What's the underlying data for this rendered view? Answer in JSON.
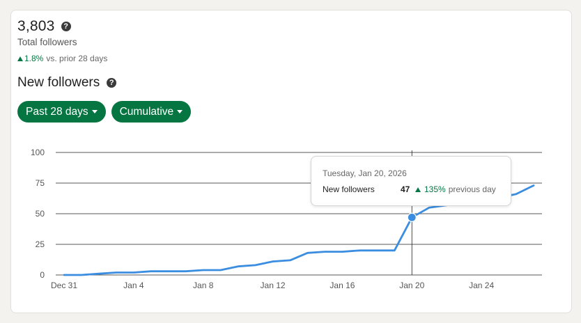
{
  "summary": {
    "total_value": "3,803",
    "total_label": "Total followers",
    "change_pct": "1.8%",
    "change_text": "vs. prior 28 days"
  },
  "section": {
    "title": "New followers"
  },
  "filters": {
    "range_label": "Past 28 days",
    "mode_label": "Cumulative"
  },
  "tooltip": {
    "date": "Tuesday, Jan 20, 2026",
    "label": "New followers",
    "value": "47",
    "change_pct": "135%",
    "change_text": "previous day"
  },
  "colors": {
    "accent": "#057642",
    "line": "#3b8de0",
    "grid": "#1f1f1f"
  },
  "chart_data": {
    "type": "line",
    "title": "",
    "xlabel": "",
    "ylabel": "",
    "ylim": [
      0,
      100
    ],
    "yticks": [
      0,
      25,
      50,
      75,
      100
    ],
    "x": [
      "Dec 31",
      "Jan 1",
      "Jan 2",
      "Jan 3",
      "Jan 4",
      "Jan 5",
      "Jan 6",
      "Jan 7",
      "Jan 8",
      "Jan 9",
      "Jan 10",
      "Jan 11",
      "Jan 12",
      "Jan 13",
      "Jan 14",
      "Jan 15",
      "Jan 16",
      "Jan 17",
      "Jan 18",
      "Jan 19",
      "Jan 20",
      "Jan 21",
      "Jan 22",
      "Jan 23",
      "Jan 24",
      "Jan 25",
      "Jan 26",
      "Jan 27"
    ],
    "xtick_labels": [
      "Dec 31",
      "Jan 4",
      "Jan 8",
      "Jan 12",
      "Jan 16",
      "Jan 20",
      "Jan 24"
    ],
    "series": [
      {
        "values": [
          0,
          0,
          1,
          2,
          2,
          3,
          3,
          3,
          4,
          4,
          7,
          8,
          11,
          12,
          18,
          19,
          19,
          20,
          20,
          20,
          47,
          55,
          57,
          59,
          61,
          63,
          66,
          73
        ]
      }
    ],
    "highlight_index": 20,
    "grid": true
  }
}
